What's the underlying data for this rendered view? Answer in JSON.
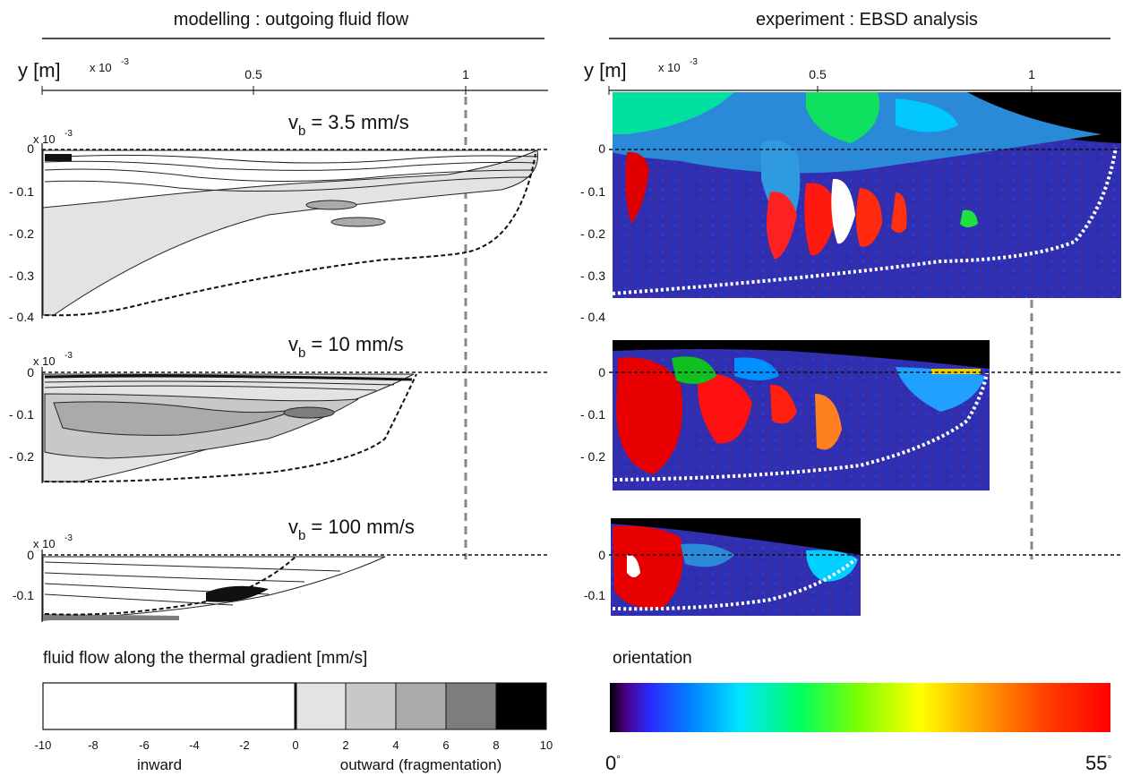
{
  "left_section": {
    "title": "modelling : outgoing fluid flow",
    "y_axis_label": "y [m]",
    "x_multiplier": "x 10",
    "x_multiplier_exp": "-3",
    "x_ticks": [
      "0.5",
      "1"
    ],
    "panels": [
      {
        "velocity_main": "v",
        "velocity_sub": "b",
        "velocity_value": "= 3.5 mm/s",
        "multiplier": "x 10",
        "multiplier_exp": "-3",
        "y_ticks": [
          "0",
          "- 0.1",
          "- 0.2",
          "- 0.3",
          "- 0.4"
        ]
      },
      {
        "velocity_main": "v",
        "velocity_sub": "b",
        "velocity_value": "= 10 mm/s",
        "multiplier": "x 10",
        "multiplier_exp": "-3",
        "y_ticks": [
          "0",
          "- 0.1",
          "- 0.2"
        ]
      },
      {
        "velocity_main": "v",
        "velocity_sub": "b",
        "velocity_value": "= 100 mm/s",
        "multiplier": "x 10",
        "multiplier_exp": "-3",
        "y_ticks": [
          "0",
          "-0.1"
        ]
      }
    ]
  },
  "right_section": {
    "title": "experiment : EBSD analysis",
    "y_axis_label": "y [m]",
    "x_multiplier": "x 10",
    "x_multiplier_exp": "-3",
    "x_ticks": [
      "0.5",
      "1"
    ],
    "panel_y_ticks": [
      [
        "0",
        "- 0.1",
        "- 0.2",
        "- 0.3",
        "- 0.4"
      ],
      [
        "0",
        "- 0.1",
        "- 0.2"
      ],
      [
        "0",
        "-0.1"
      ]
    ]
  },
  "flow_colorbar": {
    "title": "fluid flow along the thermal gradient [mm/s]",
    "ticks": [
      "-10",
      "-8",
      "-6",
      "-4",
      "-2",
      "0",
      "2",
      "4",
      "6",
      "8",
      "10"
    ],
    "inward_label": "inward",
    "outward_label": "outward (fragmentation)",
    "band_colors": [
      "#e3e3e3",
      "#c8c8c8",
      "#aaaaaa",
      "#7d7d7d",
      "#000000"
    ]
  },
  "orientation_colorbar": {
    "title": "orientation",
    "min_label": "0",
    "max_label": "55",
    "degree_symbol": "°"
  }
}
